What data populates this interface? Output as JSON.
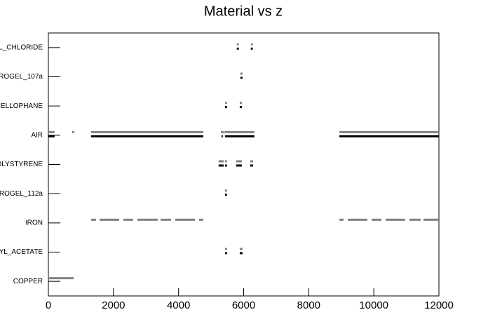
{
  "chart_data": {
    "type": "segments",
    "title": "Material vs z",
    "categories": [
      "COPPER",
      "YL_ACETATE",
      "IRON",
      "ROGEL_112a",
      "OLYSTYRENE",
      "AIR",
      "CELLOPHANE",
      "ROGEL_107a",
      "L_CHLORIDE"
    ],
    "xlim": [
      0,
      12000
    ],
    "xticks": [
      0,
      2000,
      4000,
      6000,
      8000,
      10000,
      12000
    ],
    "series": [
      {
        "color": "#808080",
        "segments": [
          {
            "category": 0,
            "start": 0,
            "end": 775
          },
          {
            "category": 1,
            "start": 5430,
            "end": 5490
          },
          {
            "category": 1,
            "start": 5880,
            "end": 5965
          },
          {
            "category": 2,
            "start": 1314,
            "end": 1465
          },
          {
            "category": 2,
            "start": 1573,
            "end": 2176
          },
          {
            "category": 2,
            "start": 2305,
            "end": 2607
          },
          {
            "category": 2,
            "start": 2736,
            "end": 3361
          },
          {
            "category": 2,
            "start": 3447,
            "end": 3770
          },
          {
            "category": 2,
            "start": 3900,
            "end": 4503
          },
          {
            "category": 2,
            "start": 4632,
            "end": 4761
          },
          {
            "category": 2,
            "start": 8941,
            "end": 9070
          },
          {
            "category": 2,
            "start": 9199,
            "end": 9802
          },
          {
            "category": 2,
            "start": 9932,
            "end": 10233
          },
          {
            "category": 2,
            "start": 10362,
            "end": 10965
          },
          {
            "category": 2,
            "start": 11094,
            "end": 11438
          },
          {
            "category": 2,
            "start": 11524,
            "end": 12000
          },
          {
            "category": 3,
            "start": 5430,
            "end": 5490
          },
          {
            "category": 4,
            "start": 5230,
            "end": 5385
          },
          {
            "category": 4,
            "start": 5430,
            "end": 5490
          },
          {
            "category": 4,
            "start": 5770,
            "end": 5945
          },
          {
            "category": 4,
            "start": 6200,
            "end": 6290
          },
          {
            "category": 5,
            "start": 0,
            "end": 190
          },
          {
            "category": 5,
            "start": 730,
            "end": 800
          },
          {
            "category": 5,
            "start": 1310,
            "end": 4760
          },
          {
            "category": 5,
            "start": 5300,
            "end": 5390
          },
          {
            "category": 5,
            "start": 5410,
            "end": 6330
          },
          {
            "category": 5,
            "start": 8940,
            "end": 12000
          },
          {
            "category": 6,
            "start": 5430,
            "end": 5490
          },
          {
            "category": 6,
            "start": 5880,
            "end": 5945
          },
          {
            "category": 7,
            "start": 5900,
            "end": 5965
          },
          {
            "category": 8,
            "start": 5790,
            "end": 5850
          },
          {
            "category": 8,
            "start": 6220,
            "end": 6280
          }
        ]
      },
      {
        "color": "#000000",
        "segments": [
          {
            "category": 1,
            "start": 5430,
            "end": 5490
          },
          {
            "category": 1,
            "start": 5880,
            "end": 5965
          },
          {
            "category": 3,
            "start": 5430,
            "end": 5490
          },
          {
            "category": 4,
            "start": 5230,
            "end": 5385
          },
          {
            "category": 4,
            "start": 5430,
            "end": 5490
          },
          {
            "category": 4,
            "start": 5770,
            "end": 5945
          },
          {
            "category": 4,
            "start": 6200,
            "end": 6290
          },
          {
            "category": 5,
            "start": 0,
            "end": 190
          },
          {
            "category": 5,
            "start": 1310,
            "end": 4760
          },
          {
            "category": 5,
            "start": 5320,
            "end": 5360
          },
          {
            "category": 5,
            "start": 5430,
            "end": 6330
          },
          {
            "category": 5,
            "start": 8940,
            "end": 12000
          },
          {
            "category": 6,
            "start": 5430,
            "end": 5490
          },
          {
            "category": 6,
            "start": 5880,
            "end": 5945
          },
          {
            "category": 7,
            "start": 5900,
            "end": 5965
          },
          {
            "category": 8,
            "start": 5790,
            "end": 5850
          },
          {
            "category": 8,
            "start": 6220,
            "end": 6280
          }
        ]
      }
    ]
  }
}
